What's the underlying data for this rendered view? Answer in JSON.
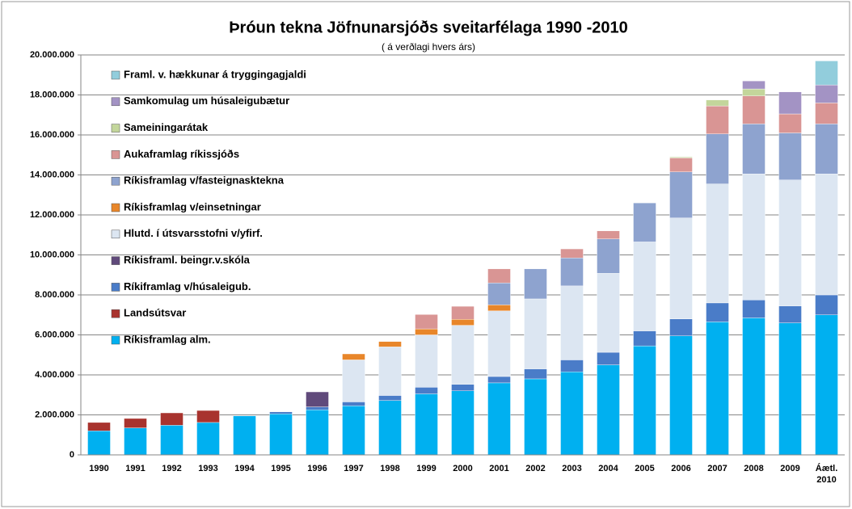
{
  "chart_data": {
    "type": "bar",
    "stacked": true,
    "title": "Þróun tekna Jöfnunarsjóðs sveitarfélaga 1990 -2010",
    "subtitle": "( á verðlagi hvers árs)",
    "categories": [
      "1990",
      "1991",
      "1992",
      "1993",
      "1994",
      "1995",
      "1996",
      "1997",
      "1998",
      "1999",
      "2000",
      "2001",
      "2002",
      "2003",
      "2004",
      "2005",
      "2006",
      "2007",
      "2008",
      "2009",
      "Áætl. 2010"
    ],
    "series": [
      {
        "name": "Ríkisframlag alm.",
        "color": "#00b0f0",
        "values": [
          1200000,
          1350000,
          1480000,
          1620000,
          1950000,
          2050000,
          2250000,
          2450000,
          2720000,
          3050000,
          3200000,
          3600000,
          3800000,
          4150000,
          4500000,
          5450000,
          5950000,
          6650000,
          6850000,
          6600000,
          7000000
        ]
      },
      {
        "name": "Landsútsvar",
        "color": "#a8332e",
        "values": [
          420000,
          470000,
          620000,
          600000,
          0,
          0,
          0,
          0,
          0,
          0,
          0,
          0,
          0,
          0,
          0,
          0,
          0,
          0,
          0,
          0,
          0
        ]
      },
      {
        "name": "Ríkiframlag v/húsaleigub.",
        "color": "#4a7cc8",
        "values": [
          0,
          0,
          0,
          0,
          0,
          100000,
          150000,
          200000,
          250000,
          330000,
          330000,
          320000,
          500000,
          600000,
          630000,
          750000,
          850000,
          950000,
          900000,
          850000,
          1000000
        ]
      },
      {
        "name": "Ríkisframl. beingr.v.skóla",
        "color": "#604a7b",
        "values": [
          0,
          0,
          0,
          0,
          0,
          0,
          750000,
          0,
          0,
          0,
          0,
          0,
          0,
          0,
          0,
          0,
          0,
          0,
          0,
          0,
          0
        ]
      },
      {
        "name": "Hlutd. í útsvarsstofni v/yfirf.",
        "color": "#dce6f2",
        "values": [
          0,
          0,
          0,
          0,
          0,
          0,
          0,
          2100000,
          2430000,
          2620000,
          2950000,
          3280000,
          3500000,
          3700000,
          3950000,
          4450000,
          5050000,
          5950000,
          6300000,
          6300000,
          6050000
        ]
      },
      {
        "name": "Ríkisframlag v/einsetningar",
        "color": "#e8862a",
        "values": [
          0,
          0,
          0,
          0,
          0,
          0,
          0,
          300000,
          270000,
          300000,
          300000,
          300000,
          0,
          0,
          0,
          0,
          0,
          0,
          0,
          0,
          0
        ]
      },
      {
        "name": "Ríkisframlag v/fasteignasktekna",
        "color": "#8ea3cf",
        "values": [
          0,
          0,
          0,
          0,
          0,
          0,
          0,
          0,
          0,
          0,
          0,
          1100000,
          1500000,
          1400000,
          1720000,
          1950000,
          2300000,
          2500000,
          2500000,
          2350000,
          2500000
        ]
      },
      {
        "name": "Aukaframlag ríkissjóðs",
        "color": "#d99594",
        "values": [
          0,
          0,
          0,
          0,
          0,
          0,
          0,
          0,
          0,
          720000,
          650000,
          700000,
          0,
          450000,
          400000,
          0,
          700000,
          1400000,
          1400000,
          950000,
          1050000
        ]
      },
      {
        "name": "Sameiningarátak",
        "color": "#c3d69b",
        "values": [
          0,
          0,
          0,
          0,
          0,
          0,
          0,
          0,
          0,
          0,
          0,
          0,
          0,
          0,
          0,
          0,
          50000,
          300000,
          350000,
          0,
          0
        ]
      },
      {
        "name": "Samkomulag um húsaleigubætur",
        "color": "#a393c4",
        "values": [
          0,
          0,
          0,
          0,
          0,
          0,
          0,
          0,
          0,
          0,
          0,
          0,
          0,
          0,
          0,
          0,
          0,
          0,
          400000,
          1100000,
          900000
        ]
      },
      {
        "name": "Framl. v. hækkunar á tryggingagjaldi",
        "color": "#92cddc",
        "values": [
          0,
          0,
          0,
          0,
          0,
          0,
          0,
          0,
          0,
          0,
          0,
          0,
          0,
          0,
          0,
          0,
          0,
          0,
          0,
          0,
          1200000
        ]
      }
    ],
    "ylim": [
      0,
      20000000
    ],
    "yticks": [
      0,
      {
        "value": 2000000,
        "label": "2.000.000"
      },
      {
        "value": 4000000,
        "label": "4.000.000"
      },
      {
        "value": 6000000,
        "label": "6.000.000"
      },
      {
        "value": 8000000,
        "label": "8.000.000"
      },
      {
        "value": 10000000,
        "label": "10.000.000"
      },
      {
        "value": 12000000,
        "label": "12.000.000"
      },
      {
        "value": 14000000,
        "label": "14.000.000"
      },
      {
        "value": 16000000,
        "label": "16.000.000"
      },
      {
        "value": 18000000,
        "label": "18.000.000"
      },
      {
        "value": 20000000,
        "label": "20.000.000"
      }
    ],
    "grid": true,
    "legend": "upper left"
  }
}
